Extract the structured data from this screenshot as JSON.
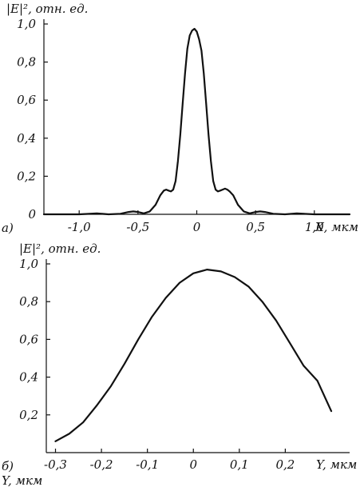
{
  "chart_data": [
    {
      "type": "line",
      "panel_label": "а)",
      "ylabel": "|E|², отн. ед.",
      "xlabel": "X, мкм",
      "xlim": [
        -1.3,
        1.3
      ],
      "ylim": [
        0,
        1.0
      ],
      "xticks": [
        {
          "value": -1.0,
          "label": "-1,0"
        },
        {
          "value": -0.5,
          "label": "-0,5"
        },
        {
          "value": 0,
          "label": "0"
        },
        {
          "value": 0.5,
          "label": "0,5"
        },
        {
          "value": 1.0,
          "label": "1,0"
        }
      ],
      "yticks": [
        {
          "value": 0,
          "label": "0"
        },
        {
          "value": 0.2,
          "label": "0,2"
        },
        {
          "value": 0.4,
          "label": "0,4"
        },
        {
          "value": 0.6,
          "label": "0,6"
        },
        {
          "value": 0.8,
          "label": "0,8"
        },
        {
          "value": 1.0,
          "label": "1,0"
        }
      ],
      "series": [
        {
          "x": [
            -1.3,
            -1.0,
            -0.85,
            -0.75,
            -0.65,
            -0.58,
            -0.54,
            -0.5,
            -0.45,
            -0.4,
            -0.35,
            -0.31,
            -0.28,
            -0.26,
            -0.24,
            -0.22,
            -0.2,
            -0.18,
            -0.16,
            -0.14,
            -0.12,
            -0.1,
            -0.08,
            -0.06,
            -0.04,
            -0.02,
            0,
            0.02,
            0.04,
            0.06,
            0.08,
            0.1,
            0.12,
            0.14,
            0.16,
            0.18,
            0.2,
            0.22,
            0.24,
            0.26,
            0.28,
            0.31,
            0.35,
            0.4,
            0.45,
            0.5,
            0.54,
            0.58,
            0.65,
            0.75,
            0.85,
            1.0,
            1.3
          ],
          "y": [
            0,
            0,
            0.005,
            0,
            0.003,
            0.012,
            0.015,
            0.012,
            0.005,
            0.015,
            0.05,
            0.1,
            0.125,
            0.13,
            0.125,
            0.12,
            0.13,
            0.175,
            0.28,
            0.42,
            0.58,
            0.74,
            0.87,
            0.94,
            0.965,
            0.975,
            0.96,
            0.92,
            0.86,
            0.74,
            0.58,
            0.42,
            0.28,
            0.175,
            0.13,
            0.12,
            0.125,
            0.13,
            0.135,
            0.13,
            0.12,
            0.1,
            0.05,
            0.015,
            0.005,
            0.012,
            0.015,
            0.012,
            0.003,
            0,
            0.005,
            0,
            0
          ]
        }
      ]
    },
    {
      "type": "line",
      "panel_label": "б)",
      "ylabel": "|E|², отн. ед.",
      "xlabel": "Y, мкм",
      "xlim": [
        -0.32,
        0.34
      ],
      "ylim": [
        0,
        1.0
      ],
      "xticks": [
        {
          "value": -0.3,
          "label": "-0,3"
        },
        {
          "value": -0.2,
          "label": "-0,2"
        },
        {
          "value": -0.1,
          "label": "-0,1"
        },
        {
          "value": 0,
          "label": "0"
        },
        {
          "value": 0.1,
          "label": "0,1"
        },
        {
          "value": 0.2,
          "label": "0,2"
        }
      ],
      "x_axis_end_label": "Y, мкм",
      "yticks": [
        {
          "value": 0.2,
          "label": "0,2"
        },
        {
          "value": 0.4,
          "label": "0,4"
        },
        {
          "value": 0.6,
          "label": "0,6"
        },
        {
          "value": 0.8,
          "label": "0,8"
        },
        {
          "value": 1.0,
          "label": "1,0"
        }
      ],
      "series": [
        {
          "x": [
            -0.3,
            -0.27,
            -0.24,
            -0.21,
            -0.18,
            -0.15,
            -0.12,
            -0.09,
            -0.06,
            -0.03,
            0,
            0.03,
            0.06,
            0.09,
            0.12,
            0.15,
            0.18,
            0.21,
            0.24,
            0.27,
            0.3
          ],
          "y": [
            0.06,
            0.1,
            0.16,
            0.25,
            0.35,
            0.47,
            0.6,
            0.72,
            0.82,
            0.9,
            0.95,
            0.97,
            0.96,
            0.93,
            0.88,
            0.8,
            0.7,
            0.58,
            0.46,
            0.38,
            0.22
          ]
        }
      ]
    }
  ]
}
